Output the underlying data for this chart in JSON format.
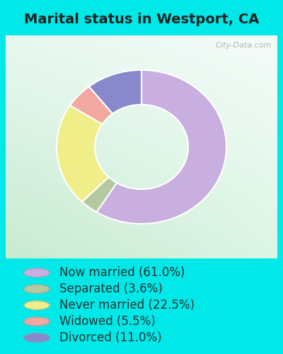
{
  "title": "Marital status in Westport, CA",
  "slices": [
    61.0,
    3.6,
    22.5,
    5.5,
    11.0
  ],
  "labels": [
    "Now married (61.0%)",
    "Separated (3.6%)",
    "Never married (22.5%)",
    "Widowed (5.5%)",
    "Divorced (11.0%)"
  ],
  "colors": [
    "#c9aee0",
    "#b5c9a0",
    "#f0ee88",
    "#f0a8a0",
    "#8888cc"
  ],
  "donut_outer_r": 1.0,
  "donut_inner_r": 0.55,
  "start_angle": 90,
  "chart_bg_tl": "#e8f8f0",
  "chart_bg_tr": "#f5faf8",
  "chart_bg_bl": "#d0edd8",
  "outer_bg": "#00e8e8",
  "watermark": "City-Data.com",
  "title_fontsize": 14,
  "legend_fontsize": 12,
  "title_color": "#222222",
  "legend_text_color": "#333333"
}
